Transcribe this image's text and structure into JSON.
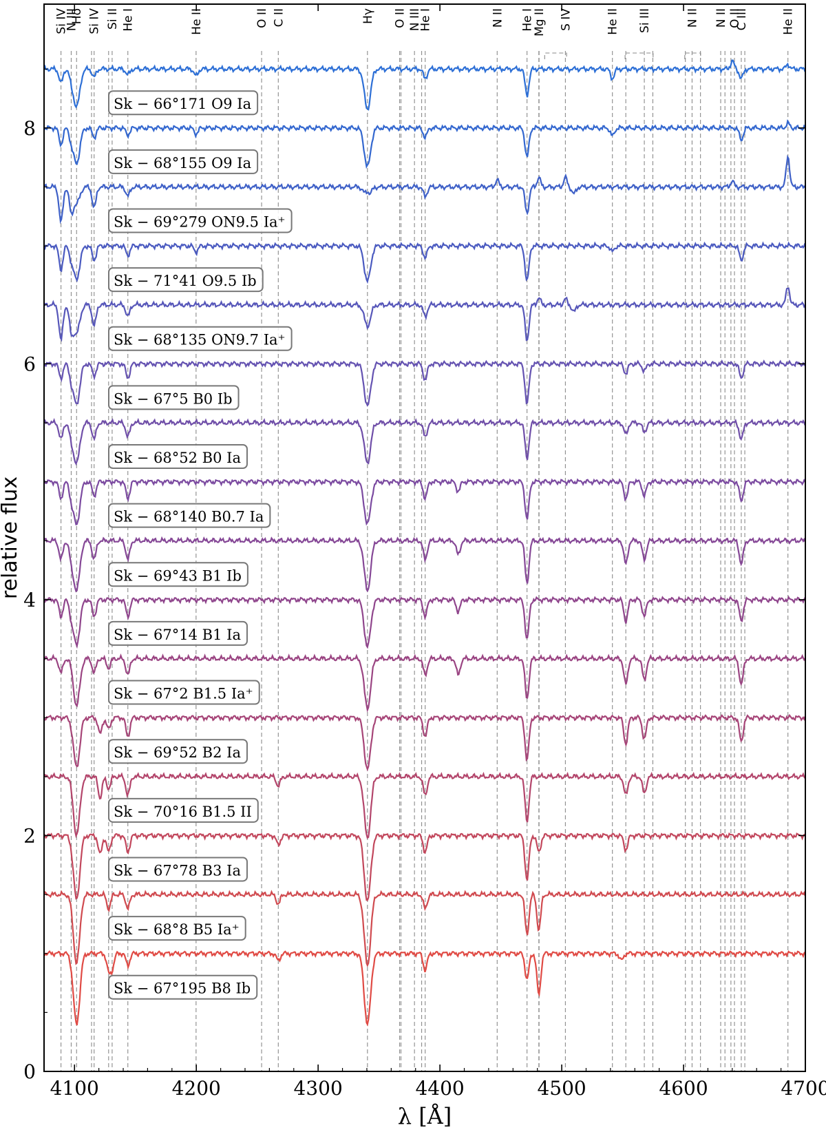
{
  "chart_data": {
    "type": "line",
    "title": "",
    "xlabel": "λ [Å]",
    "ylabel": "relative flux",
    "xlim": [
      4075,
      4700
    ],
    "ylim": [
      0,
      9.05
    ],
    "xticks": [
      4100,
      4200,
      4300,
      4400,
      4500,
      4600,
      4700
    ],
    "yticks": [
      0,
      2,
      4,
      6,
      8
    ],
    "line_markers": [
      {
        "wl": 4088.9,
        "label": "Si IV"
      },
      {
        "wl": 4097.3,
        "label": "N III"
      },
      {
        "wl": 4101.7,
        "label": "Hδ"
      },
      {
        "wl": 4116.1,
        "label": "Si IV"
      },
      {
        "wl": 4130.9,
        "label": "Si II"
      },
      {
        "wl": 4143.8,
        "label": "He I"
      },
      {
        "wl": 4199.8,
        "label": "He II"
      },
      {
        "wl": 4253.6,
        "label": "O II"
      },
      {
        "wl": 4267.3,
        "label": "C II"
      },
      {
        "wl": 4340.5,
        "label": "Hγ"
      },
      {
        "wl": 4366.9,
        "label": "O II"
      },
      {
        "wl": 4379.1,
        "label": "N III"
      },
      {
        "wl": 4387.9,
        "label": "He I"
      },
      {
        "wl": 4447.0,
        "label": "N II"
      },
      {
        "wl": 4471.5,
        "label": "He I"
      },
      {
        "wl": 4481.2,
        "label": "Mg II"
      },
      {
        "wl": 4503.0,
        "label": "S IV"
      },
      {
        "wl": 4541.6,
        "label": "He II"
      },
      {
        "wl": 4567.8,
        "label": "Si III"
      },
      {
        "wl": 4607.0,
        "label": "N II"
      },
      {
        "wl": 4630.5,
        "label": "N II"
      },
      {
        "wl": 4641.8,
        "label": "O II"
      },
      {
        "wl": 4647.4,
        "label": "C III"
      },
      {
        "wl": 4685.7,
        "label": "He II"
      }
    ],
    "extra_line_positions": [
      4114.0,
      4128.0,
      4368.0,
      4385.0,
      4481.4,
      4552.6,
      4574.8,
      4601.5,
      4613.9,
      4634.0,
      4638.9,
      4650.3
    ],
    "bracket_groups": [
      {
        "label": "S IV",
        "from": 4486,
        "to": 4504
      },
      {
        "label": "Si III",
        "from": 4552,
        "to": 4575
      },
      {
        "label": "N II",
        "from": 4601,
        "to": 4614
      }
    ],
    "series": [
      {
        "name": "Sk − 66°171 O9 Ia",
        "offset": 8.5,
        "color": "#2d6fd6",
        "absorption": [
          [
            4088.9,
            0.12
          ],
          [
            4097.3,
            0.07
          ],
          [
            4101.7,
            0.32
          ],
          [
            4116.1,
            0.07
          ],
          [
            4143.8,
            0.05
          ],
          [
            4199.8,
            0.06
          ],
          [
            4340.5,
            0.34
          ],
          [
            4387.9,
            0.08
          ],
          [
            4471.5,
            0.22
          ],
          [
            4541.6,
            0.08
          ],
          [
            4647.4,
            0.08
          ]
        ],
        "emission": [
          [
            4640,
            0.07
          ],
          [
            4685.7,
            0.04
          ]
        ]
      },
      {
        "name": "Sk − 68°155 O9 Ia",
        "offset": 8.0,
        "color": "#3367cf",
        "absorption": [
          [
            4088.9,
            0.14
          ],
          [
            4097.3,
            0.08
          ],
          [
            4101.7,
            0.3
          ],
          [
            4116.1,
            0.08
          ],
          [
            4143.8,
            0.06
          ],
          [
            4199.8,
            0.05
          ],
          [
            4340.5,
            0.33
          ],
          [
            4387.9,
            0.08
          ],
          [
            4471.5,
            0.25
          ],
          [
            4541.6,
            0.07
          ],
          [
            4647.4,
            0.1
          ]
        ],
        "emission": [
          [
            4685.7,
            0.04
          ]
        ]
      },
      {
        "name": "Sk − 69°279 ON9.5 Ia⁺",
        "offset": 7.5,
        "color": "#3e60c7",
        "absorption": [
          [
            4088.9,
            0.3
          ],
          [
            4097.3,
            0.2
          ],
          [
            4101.7,
            0.14
          ],
          [
            4116.1,
            0.18
          ],
          [
            4143.8,
            0.08
          ],
          [
            4340.5,
            0.1
          ],
          [
            4387.9,
            0.08
          ],
          [
            4471.5,
            0.22
          ],
          [
            4510,
            0.06
          ]
        ],
        "emission": [
          [
            4340.5,
            0.06
          ],
          [
            4447.0,
            0.06
          ],
          [
            4481.2,
            0.08
          ],
          [
            4503.0,
            0.08
          ],
          [
            4640,
            0.05
          ],
          [
            4685.7,
            0.26
          ]
        ]
      },
      {
        "name": "Sk − 71°41 O9.5 Ib",
        "offset": 7.0,
        "color": "#4a5ac0",
        "absorption": [
          [
            4088.9,
            0.2
          ],
          [
            4097.3,
            0.08
          ],
          [
            4101.7,
            0.28
          ],
          [
            4116.1,
            0.12
          ],
          [
            4143.8,
            0.08
          ],
          [
            4199.8,
            0.05
          ],
          [
            4340.5,
            0.3
          ],
          [
            4387.9,
            0.1
          ],
          [
            4471.5,
            0.3
          ],
          [
            4541.6,
            0.05
          ],
          [
            4647.4,
            0.12
          ]
        ],
        "emission": []
      },
      {
        "name": "Sk − 68°135 ON9.7 Ia⁺",
        "offset": 6.5,
        "color": "#5656b9",
        "absorption": [
          [
            4088.9,
            0.3
          ],
          [
            4097.3,
            0.2
          ],
          [
            4101.7,
            0.24
          ],
          [
            4116.1,
            0.18
          ],
          [
            4143.8,
            0.1
          ],
          [
            4340.5,
            0.18
          ],
          [
            4387.9,
            0.1
          ],
          [
            4471.5,
            0.3
          ],
          [
            4510,
            0.06
          ]
        ],
        "emission": [
          [
            4481.2,
            0.06
          ],
          [
            4503.0,
            0.05
          ],
          [
            4685.7,
            0.16
          ]
        ]
      },
      {
        "name": "Sk − 67°5 B0 Ib",
        "offset": 6.0,
        "color": "#6452b1",
        "absorption": [
          [
            4088.9,
            0.12
          ],
          [
            4097.3,
            0.1
          ],
          [
            4101.7,
            0.34
          ],
          [
            4116.1,
            0.1
          ],
          [
            4143.8,
            0.12
          ],
          [
            4340.5,
            0.36
          ],
          [
            4387.9,
            0.14
          ],
          [
            4471.5,
            0.34
          ],
          [
            4552.6,
            0.08
          ],
          [
            4567.8,
            0.06
          ],
          [
            4647.4,
            0.12
          ]
        ],
        "emission": []
      },
      {
        "name": "Sk − 68°52 B0 Ia",
        "offset": 5.5,
        "color": "#6f4ea8",
        "absorption": [
          [
            4088.9,
            0.14
          ],
          [
            4097.3,
            0.1
          ],
          [
            4101.7,
            0.34
          ],
          [
            4116.1,
            0.14
          ],
          [
            4143.8,
            0.12
          ],
          [
            4340.5,
            0.34
          ],
          [
            4387.9,
            0.12
          ],
          [
            4471.5,
            0.3
          ],
          [
            4552.6,
            0.1
          ],
          [
            4567.8,
            0.08
          ],
          [
            4647.4,
            0.14
          ]
        ],
        "emission": []
      },
      {
        "name": "Sk − 68°140 B0.7 Ia",
        "offset": 5.0,
        "color": "#7b4aa0",
        "absorption": [
          [
            4088.9,
            0.14
          ],
          [
            4097.3,
            0.1
          ],
          [
            4101.7,
            0.36
          ],
          [
            4116.1,
            0.12
          ],
          [
            4143.8,
            0.14
          ],
          [
            4340.5,
            0.36
          ],
          [
            4387.9,
            0.14
          ],
          [
            4415,
            0.08
          ],
          [
            4471.5,
            0.32
          ],
          [
            4552.6,
            0.14
          ],
          [
            4567.8,
            0.12
          ],
          [
            4647.4,
            0.16
          ]
        ],
        "emission": []
      },
      {
        "name": "Sk − 69°43 B1 Ib",
        "offset": 4.5,
        "color": "#854796",
        "absorption": [
          [
            4088.9,
            0.16
          ],
          [
            4097.3,
            0.12
          ],
          [
            4101.7,
            0.42
          ],
          [
            4116.1,
            0.16
          ],
          [
            4143.8,
            0.16
          ],
          [
            4340.5,
            0.42
          ],
          [
            4387.9,
            0.16
          ],
          [
            4415,
            0.12
          ],
          [
            4471.5,
            0.36
          ],
          [
            4552.6,
            0.2
          ],
          [
            4567.8,
            0.16
          ],
          [
            4647.4,
            0.2
          ]
        ],
        "emission": []
      },
      {
        "name": "Sk − 67°14 B1 Ia",
        "offset": 4.0,
        "color": "#8f458c",
        "absorption": [
          [
            4088.9,
            0.14
          ],
          [
            4097.3,
            0.1
          ],
          [
            4101.7,
            0.38
          ],
          [
            4116.1,
            0.14
          ],
          [
            4143.8,
            0.14
          ],
          [
            4340.5,
            0.4
          ],
          [
            4387.9,
            0.14
          ],
          [
            4415,
            0.1
          ],
          [
            4471.5,
            0.34
          ],
          [
            4552.6,
            0.18
          ],
          [
            4567.8,
            0.14
          ],
          [
            4647.4,
            0.18
          ]
        ],
        "emission": []
      },
      {
        "name": "Sk − 67°2 B1.5 Ia⁺",
        "offset": 3.5,
        "color": "#9a4482",
        "absorption": [
          [
            4088.9,
            0.12
          ],
          [
            4101.7,
            0.4
          ],
          [
            4116.1,
            0.12
          ],
          [
            4128.0,
            0.08
          ],
          [
            4143.8,
            0.14
          ],
          [
            4340.5,
            0.42
          ],
          [
            4387.9,
            0.14
          ],
          [
            4415,
            0.14
          ],
          [
            4471.5,
            0.34
          ],
          [
            4552.6,
            0.22
          ],
          [
            4567.8,
            0.18
          ],
          [
            4647.4,
            0.22
          ]
        ],
        "emission": []
      },
      {
        "name": "Sk − 69°52 B2 Ia",
        "offset": 3.0,
        "color": "#a64477",
        "absorption": [
          [
            4101.7,
            0.42
          ],
          [
            4121,
            0.14
          ],
          [
            4128.0,
            0.1
          ],
          [
            4143.8,
            0.16
          ],
          [
            4340.5,
            0.44
          ],
          [
            4387.9,
            0.16
          ],
          [
            4471.5,
            0.36
          ],
          [
            4552.6,
            0.22
          ],
          [
            4567.8,
            0.18
          ],
          [
            4647.4,
            0.2
          ]
        ],
        "emission": []
      },
      {
        "name": "Sk − 70°16 B1.5 II",
        "offset": 2.5,
        "color": "#b3456b",
        "absorption": [
          [
            4101.7,
            0.5
          ],
          [
            4121,
            0.18
          ],
          [
            4128.0,
            0.1
          ],
          [
            4143.8,
            0.16
          ],
          [
            4267.3,
            0.08
          ],
          [
            4340.5,
            0.52
          ],
          [
            4387.9,
            0.16
          ],
          [
            4471.5,
            0.38
          ],
          [
            4552.6,
            0.16
          ],
          [
            4567.8,
            0.14
          ]
        ],
        "emission": []
      },
      {
        "name": "Sk − 67°78 B3 Ia",
        "offset": 2.0,
        "color": "#c2475c",
        "absorption": [
          [
            4101.7,
            0.54
          ],
          [
            4121,
            0.16
          ],
          [
            4128.0,
            0.14
          ],
          [
            4143.8,
            0.14
          ],
          [
            4267.3,
            0.08
          ],
          [
            4340.5,
            0.56
          ],
          [
            4387.9,
            0.14
          ],
          [
            4471.5,
            0.38
          ],
          [
            4481.2,
            0.14
          ],
          [
            4552.6,
            0.12
          ]
        ],
        "emission": []
      },
      {
        "name": "Sk − 68°8 B5 Ia⁺",
        "offset": 1.5,
        "color": "#d04a4f",
        "absorption": [
          [
            4101.7,
            0.58
          ],
          [
            4128.0,
            0.12
          ],
          [
            4143.8,
            0.12
          ],
          [
            4267.3,
            0.08
          ],
          [
            4340.5,
            0.6
          ],
          [
            4387.9,
            0.12
          ],
          [
            4471.5,
            0.34
          ],
          [
            4481.2,
            0.3
          ]
        ],
        "emission": []
      },
      {
        "name": "Sk − 67°195 B8 Ib",
        "offset": 1.0,
        "color": "#e04a44",
        "absorption": [
          [
            4101.7,
            0.6
          ],
          [
            4128.0,
            0.14
          ],
          [
            4130.9,
            0.12
          ],
          [
            4143.8,
            0.1
          ],
          [
            4267.3,
            0.06
          ],
          [
            4340.5,
            0.6
          ],
          [
            4387.9,
            0.14
          ],
          [
            4471.5,
            0.22
          ],
          [
            4481.2,
            0.35
          ],
          [
            4549,
            0.06
          ]
        ],
        "emission": []
      }
    ]
  }
}
